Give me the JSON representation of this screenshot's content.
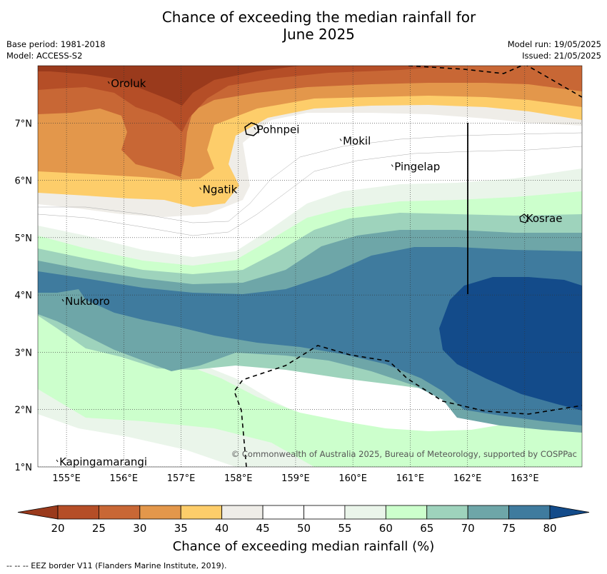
{
  "title_line1": "Chance of exceeding the median rainfall for",
  "title_line2": "June 2025",
  "meta": {
    "base_period": "Base period: 1981-2018",
    "model": "Model: ACCESS-S2",
    "model_run": "Model run: 19/05/2025",
    "issued": "Issued: 21/05/2025"
  },
  "map": {
    "lon_ticks": [
      "155°E",
      "156°E",
      "157°E",
      "158°E",
      "159°E",
      "160°E",
      "161°E",
      "162°E",
      "163°E"
    ],
    "lat_ticks": [
      "1°N",
      "2°N",
      "3°N",
      "4°N",
      "5°N",
      "6°N",
      "7°N"
    ],
    "places": [
      {
        "name": "Oroluk",
        "lon": 155.75,
        "lat": 7.65
      },
      {
        "name": "Pohnpei",
        "lon": 158.3,
        "lat": 6.85
      },
      {
        "name": "Mokil",
        "lon": 159.8,
        "lat": 6.65
      },
      {
        "name": "Pingelap",
        "lon": 160.7,
        "lat": 6.2
      },
      {
        "name": "Ngatik",
        "lon": 157.35,
        "lat": 5.8
      },
      {
        "name": "Kosrae",
        "lon": 163.0,
        "lat": 5.3
      },
      {
        "name": "Nukuoro",
        "lon": 154.95,
        "lat": 3.85
      },
      {
        "name": "Kapingamarangi",
        "lon": 154.85,
        "lat": 1.05
      }
    ],
    "copyright": "© Commonwealth of Australia 2025, Bureau of Meteorology, supported by COSPPac"
  },
  "colorbar": {
    "ticks": [
      "20",
      "25",
      "30",
      "35",
      "40",
      "45",
      "50",
      "55",
      "60",
      "65",
      "70",
      "75",
      "80"
    ],
    "colors": [
      "#9a3a1c",
      "#b54e27",
      "#c86735",
      "#e3974b",
      "#fdcd6a",
      "#efede8",
      "#ffffff",
      "#ffffff",
      "#eaf5ea",
      "#ccffcc",
      "#9ed3bc",
      "#6ea6a8",
      "#3f7b9e",
      "#134b8a"
    ],
    "label": "Chance of exceeding median rainfall (%)"
  },
  "footnote": "--  --  -- EEZ border V11 (Flanders Marine Institute, 2019).",
  "chart_data": {
    "type": "heatmap",
    "title": "Chance of exceeding the median rainfall for June 2025",
    "variable": "Chance of exceeding median rainfall (%)",
    "levels": [
      20,
      25,
      30,
      35,
      40,
      45,
      50,
      55,
      60,
      65,
      70,
      75,
      80
    ],
    "xlim": [
      154.5,
      164.0
    ],
    "ylim": [
      1.0,
      8.0
    ],
    "regions_approx": [
      {
        "area": "north-west (Oroluk–Pohnpei)",
        "range": "25–35%"
      },
      {
        "area": "central (Mokil–Pingelap)",
        "range": "45–55%"
      },
      {
        "area": "south-east near 162–164°E, 2–4°N",
        "range": ">75%"
      },
      {
        "area": "south-west (Kapingamarangi)",
        "range": "50–60%"
      }
    ]
  }
}
